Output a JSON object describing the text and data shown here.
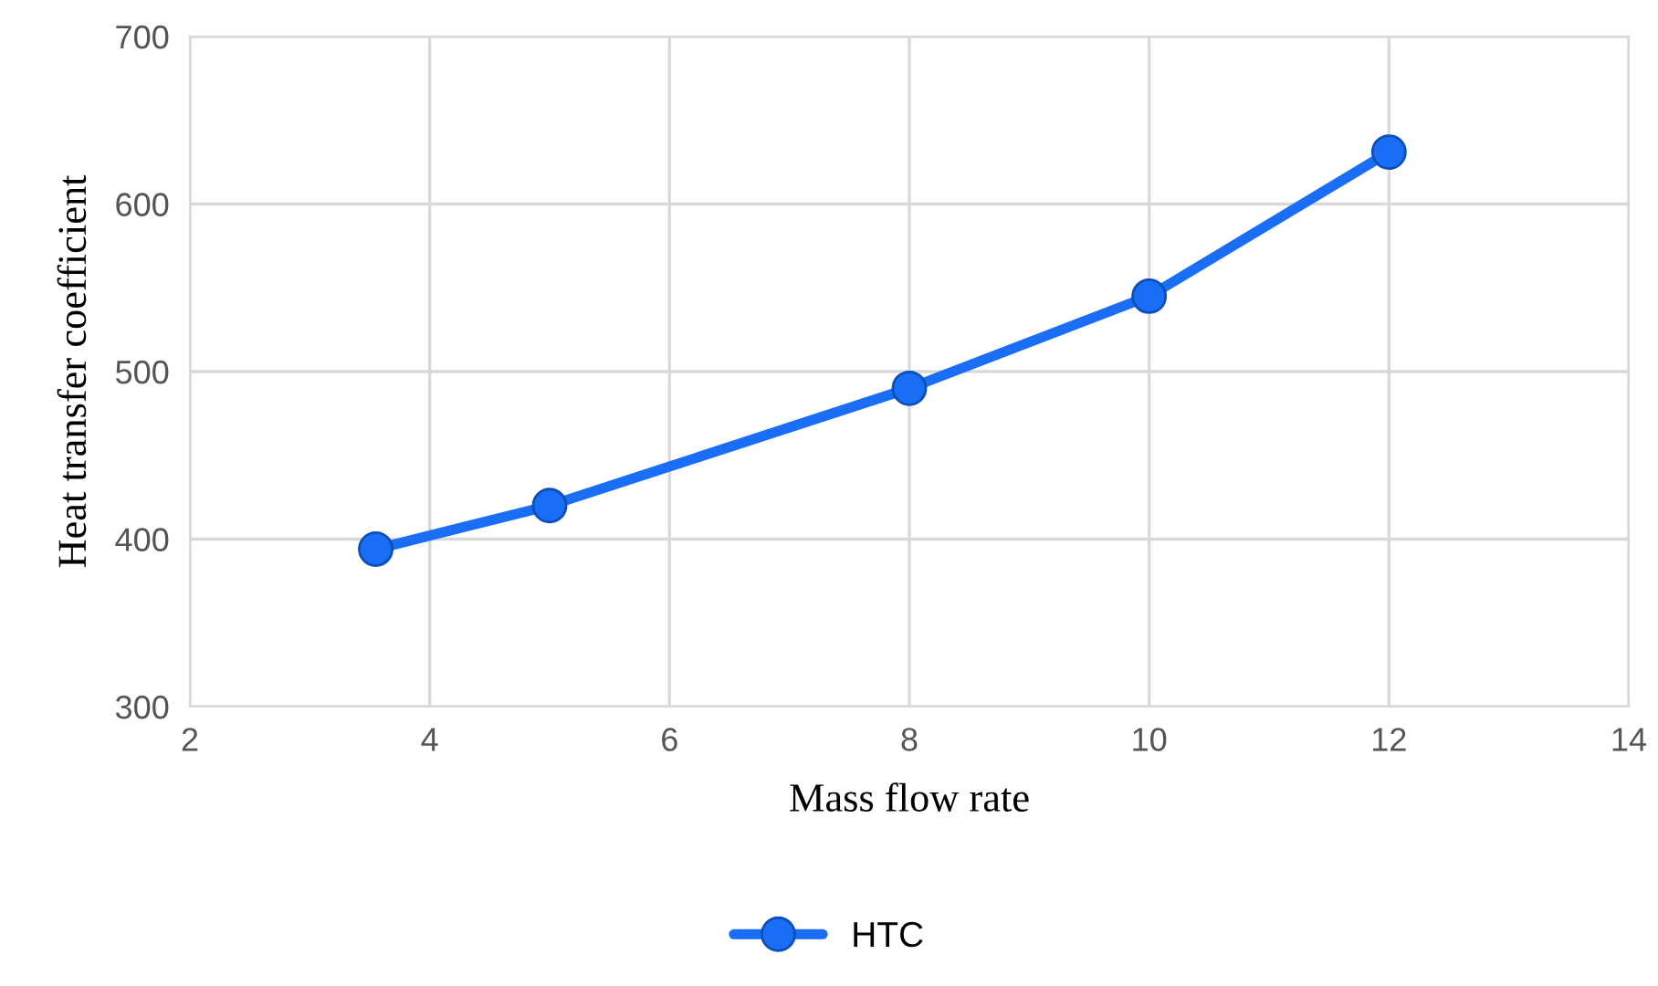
{
  "chart_data": {
    "type": "line",
    "xlabel": "Mass flow rate",
    "ylabel": "Heat transfer coefficient",
    "x": [
      3.55,
      5,
      8,
      10,
      12
    ],
    "series": [
      {
        "name": "HTC",
        "color": "#1a6ef5",
        "values": [
          394,
          420,
          490,
          545,
          631
        ]
      }
    ],
    "xlim": [
      2,
      14
    ],
    "xticks": [
      2,
      4,
      6,
      8,
      10,
      12,
      14
    ],
    "ylim": [
      300,
      700
    ],
    "yticks": [
      300,
      400,
      500,
      600,
      700
    ],
    "grid": true,
    "legend": "bottom",
    "marker": "circle",
    "line_style": "solid"
  }
}
